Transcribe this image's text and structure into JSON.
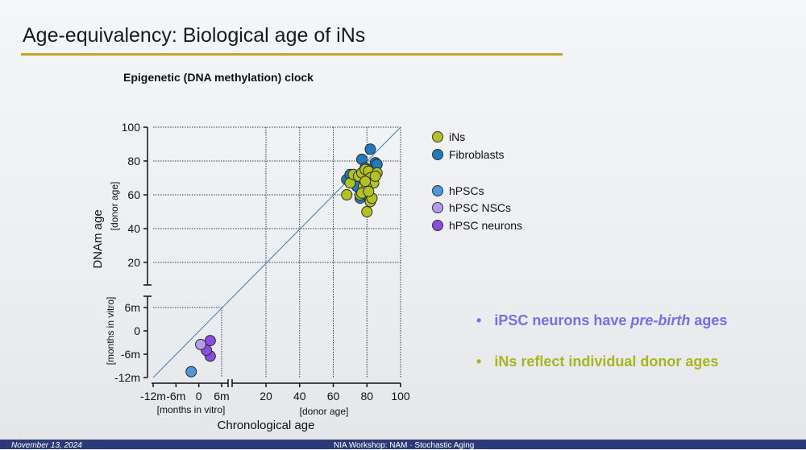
{
  "slide": {
    "title": "Age-equivalency: Biological age of iNs",
    "footer_date": "November 13, 2024",
    "footer_text": "NIA Workshop: NAM · Stochastic Aging"
  },
  "bullets": [
    {
      "mark": "•",
      "plain": "iPSC neurons have ",
      "em": "pre-birth",
      "tail": " ages",
      "color": "#7a6cf0"
    },
    {
      "mark": "•",
      "plain": "iNs reflect individual donor ages",
      "em": "",
      "tail": "",
      "color": "#a8b51e"
    }
  ],
  "colors": {
    "iNs": "#b4c21f",
    "Fibroblasts": "#1f7bc0",
    "hPSCs": "#4a97dc",
    "hPSC NSCs": "#b39cf0",
    "hPSC neurons": "#8b4ce0",
    "title_rule": "#c9a227"
  },
  "chart_data": {
    "type": "scatter",
    "title": "Epigenetic (DNA methylation) clock",
    "xlabel": "Chronological age",
    "ylabel": "DNAm age",
    "x_sublabels": {
      "months": "[months in vitro]",
      "donor": "[donor age]"
    },
    "y_sublabels": {
      "months": "[months in vitro]",
      "donor": "[donor age]"
    },
    "x_ticks_months": [
      "-12m",
      "-6m",
      "0",
      "6m"
    ],
    "x_ticks_donor": [
      "20",
      "40",
      "60",
      "80",
      "100"
    ],
    "y_ticks_months": [
      "-12m",
      "-6m",
      "0",
      "6m"
    ],
    "y_ticks_donor": [
      "20",
      "40",
      "60",
      "80",
      "100"
    ],
    "xlim_months": [
      -12,
      6
    ],
    "ylim_months": [
      -12,
      6
    ],
    "xlim_donor": [
      20,
      100
    ],
    "ylim_donor": [
      20,
      100
    ],
    "grid": true,
    "legend_position": "right",
    "legend_groups": [
      [
        "iNs",
        "Fibroblasts"
      ],
      [
        "hPSCs",
        "hPSC NSCs",
        "hPSC neurons"
      ]
    ],
    "series": [
      {
        "name": "Fibroblasts",
        "scale": "donor",
        "points": [
          [
            82,
            87
          ],
          [
            77,
            81
          ],
          [
            68,
            69
          ],
          [
            70,
            72
          ],
          [
            85,
            79
          ],
          [
            83,
            74
          ],
          [
            76,
            58
          ],
          [
            80,
            60
          ],
          [
            74,
            65
          ],
          [
            79,
            76
          ],
          [
            86,
            78
          ]
        ]
      },
      {
        "name": "iNs",
        "scale": "donor",
        "points": [
          [
            68,
            60
          ],
          [
            70,
            67
          ],
          [
            72,
            72
          ],
          [
            75,
            71
          ],
          [
            77,
            73
          ],
          [
            79,
            75
          ],
          [
            81,
            74
          ],
          [
            82,
            70
          ],
          [
            84,
            67
          ],
          [
            86,
            73
          ],
          [
            78,
            65
          ],
          [
            80,
            64
          ],
          [
            76,
            60
          ],
          [
            82,
            56
          ],
          [
            80,
            50
          ],
          [
            83,
            58
          ],
          [
            79,
            68
          ],
          [
            85,
            71
          ],
          [
            77,
            61
          ],
          [
            81,
            62
          ]
        ]
      },
      {
        "name": "hPSC neurons",
        "scale": "months",
        "points": [
          [
            3,
            -2.5
          ],
          [
            3,
            -6.5
          ],
          [
            2,
            -5
          ]
        ]
      },
      {
        "name": "hPSC NSCs",
        "scale": "months",
        "points": [
          [
            0.5,
            -3.5
          ]
        ]
      },
      {
        "name": "hPSCs",
        "scale": "months",
        "points": [
          [
            -2,
            -10.5
          ]
        ]
      }
    ]
  }
}
